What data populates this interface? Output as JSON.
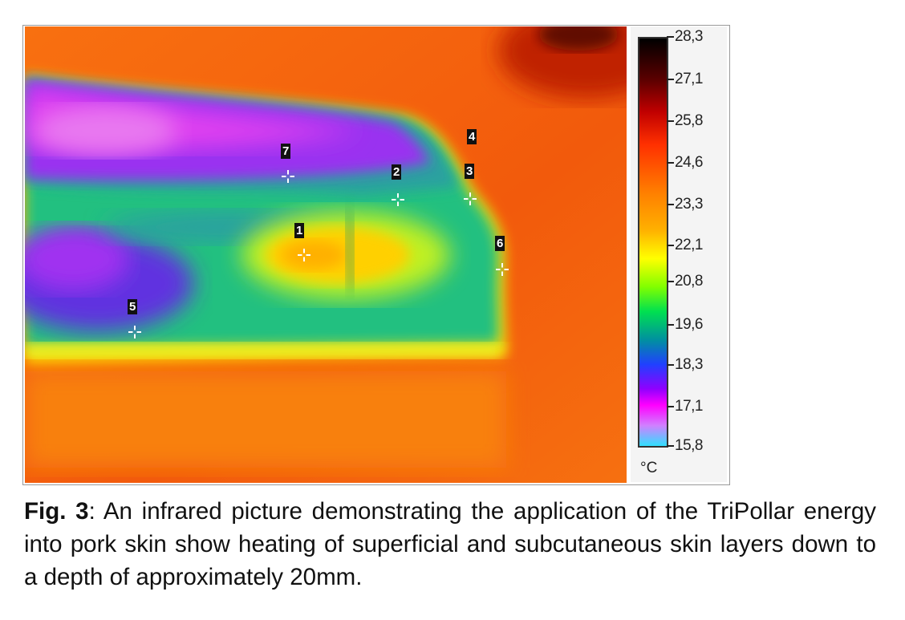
{
  "figure": {
    "scale": {
      "ticks": [
        "28,3",
        "27,1",
        "25,8",
        "24,6",
        "23,3",
        "22,1",
        "20,8",
        "19,6",
        "18,3",
        "17,1",
        "15,8"
      ],
      "unit": "°C",
      "min": 15.8,
      "max": 28.3
    },
    "markers": [
      "1",
      "2",
      "3",
      "4",
      "5",
      "6",
      "7"
    ]
  },
  "caption": {
    "label": "Fig. 3",
    "text": ": An infrared picture demonstrating the application of the TriPollar energy into pork skin show heating of superficial and subcutaneous skin layers down to a depth of approximately 20mm."
  }
}
